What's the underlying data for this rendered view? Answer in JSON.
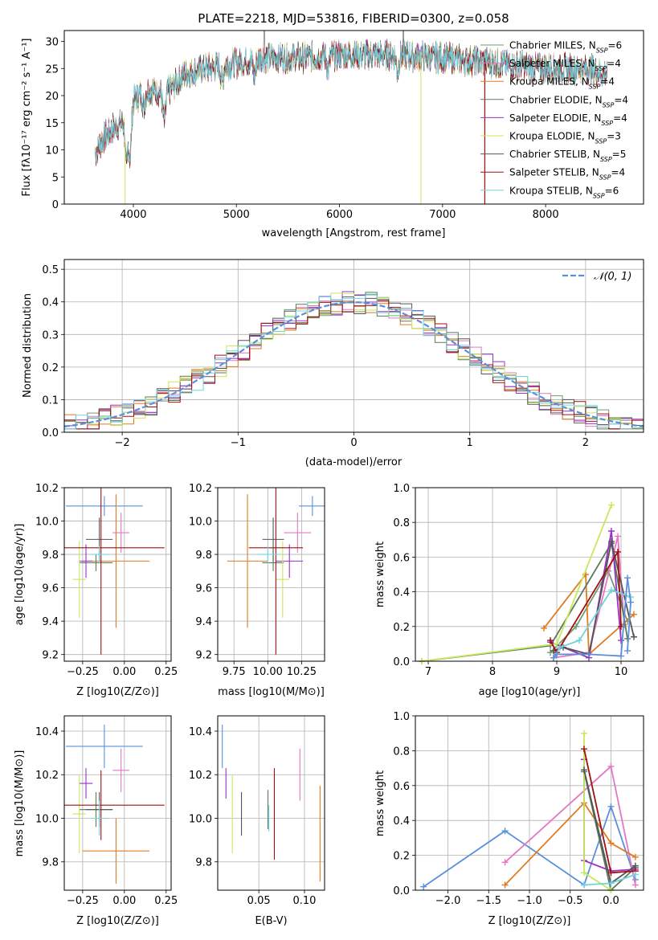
{
  "chart_data": [
    {
      "type": "line",
      "title": "PLATE=2218, MJD=53816, FIBERID=0300, z=0.058",
      "xlabel": "wavelength [Angstrom, rest frame]",
      "ylabel": "Flux [fλ10⁻¹⁷ erg cm⁻² s⁻¹ A⁻¹]",
      "xlim": [
        3330,
        8950
      ],
      "ylim": [
        0,
        32
      ],
      "xticks": [
        4000,
        5000,
        6000,
        7000,
        8000
      ],
      "yticks": [
        0,
        5,
        10,
        15,
        20,
        25,
        30
      ],
      "legend_position": "top-right",
      "continuum_knots": {
        "x": [
          3600,
          3700,
          3800,
          3900,
          4000,
          4100,
          4200,
          4300,
          4400,
          4500,
          4700,
          5000,
          5300,
          5600,
          6000,
          6500,
          7000,
          7500,
          8000,
          8400,
          8600
        ],
        "y": [
          8,
          12,
          14,
          15,
          19,
          21,
          21,
          20,
          22,
          24,
          25,
          26,
          27,
          27,
          27.5,
          27.5,
          27,
          26,
          25,
          25,
          24
        ]
      },
      "series": [
        {
          "name": "Chabrier MILES, N_SSP=6",
          "legend": "Chabrier MILES, N",
          "nssp": "6",
          "color": "#6b9f6b"
        },
        {
          "name": "Salpeter MILES, N_SSP=4",
          "legend": "Salpeter MILES, N",
          "nssp": "4",
          "color": "#e377c2"
        },
        {
          "name": "Kroupa MILES, N_SSP=4",
          "legend": "Kroupa MILES, N",
          "nssp": "4",
          "color": "#e07b20"
        },
        {
          "name": "Chabrier ELODIE, N_SSP=4",
          "legend": "Chabrier ELODIE, N",
          "nssp": "4",
          "color": "#5a7a5a"
        },
        {
          "name": "Salpeter ELODIE, N_SSP=4",
          "legend": "Salpeter ELODIE, N",
          "nssp": "4",
          "color": "#9b30c8"
        },
        {
          "name": "Kroupa ELODIE, N_SSP=3",
          "legend": "Kroupa ELODIE, N",
          "nssp": "3",
          "color": "#c8e85a"
        },
        {
          "name": "Chabrier STELIB, N_SSP=5",
          "legend": "Chabrier STELIB, N",
          "nssp": "5",
          "color": "#555555"
        },
        {
          "name": "Salpeter STELIB, N_SSP=4",
          "legend": "Salpeter STELIB, N",
          "nssp": "4",
          "color": "#a01010"
        },
        {
          "name": "Kroupa STELIB, N_SSP=6",
          "legend": "Kroupa STELIB, N",
          "nssp": "6",
          "color": "#6fd3e0"
        }
      ]
    },
    {
      "type": "histogram",
      "xlabel": "(data-model)/error",
      "ylabel": "Normed distribution",
      "xlim": [
        -2.5,
        2.5
      ],
      "ylim": [
        0,
        0.53
      ],
      "xticks": [
        -2,
        -1,
        0,
        1,
        2
      ],
      "yticks": [
        0.0,
        0.1,
        0.2,
        0.3,
        0.4,
        0.5
      ],
      "legend": "𝒩(0, 1)",
      "bin_width": 0.1,
      "curve_color": "#5b8fd9",
      "series_colors": [
        "#6b9f6b",
        "#e377c2",
        "#e07b20",
        "#5a7a5a",
        "#9b30c8",
        "#c8e85a",
        "#555555",
        "#a01010",
        "#6fd3e0"
      ]
    },
    {
      "type": "scatter",
      "xlabel": "Z [log10(Z/Z⊙)]",
      "ylabel": "age [log10(age/yr)]",
      "xlim": [
        -0.36,
        0.28
      ],
      "ylim": [
        9.16,
        10.2
      ],
      "xticks": [
        -0.25,
        0.0,
        0.25
      ],
      "yticks": [
        9.2,
        9.4,
        9.6,
        9.8,
        10.0,
        10.2
      ],
      "points": [
        {
          "color": "#5b8fd9",
          "x": -0.12,
          "xerr": 0.23,
          "y": 10.09,
          "yerr": 0.06
        },
        {
          "color": "#e377c2",
          "x": -0.02,
          "xerr": 0.05,
          "y": 9.93,
          "yerr": 0.12
        },
        {
          "color": "#e07b20",
          "x": -0.05,
          "xerr": 0.2,
          "y": 9.76,
          "yerr": 0.4
        },
        {
          "color": "#5a7a5a",
          "x": -0.17,
          "xerr": 0.1,
          "y": 9.75,
          "yerr": 0.05
        },
        {
          "color": "#9b30c8",
          "x": -0.23,
          "xerr": 0.04,
          "y": 9.76,
          "yerr": 0.1
        },
        {
          "color": "#c8e85a",
          "x": -0.27,
          "xerr": 0.04,
          "y": 9.65,
          "yerr": 0.23
        },
        {
          "color": "#555555",
          "x": -0.15,
          "xerr": 0.08,
          "y": 9.89,
          "yerr": 0.13
        },
        {
          "color": "#a01010",
          "x": -0.14,
          "xerr": 0.38,
          "y": 9.84,
          "yerr": 0.64
        },
        {
          "color": "#6fd3e0",
          "x": -0.15,
          "xerr": 0.05,
          "y": 9.8,
          "yerr": 0.05
        }
      ]
    },
    {
      "type": "scatter",
      "xlabel": "mass [log10(M/M⊙)]",
      "ylabel": "",
      "xlim": [
        9.63,
        10.42
      ],
      "ylim": [
        9.16,
        10.2
      ],
      "xticks": [
        9.75,
        10.0,
        10.25
      ],
      "yticks": [
        9.2,
        9.4,
        9.6,
        9.8,
        10.0,
        10.2
      ],
      "points": [
        {
          "color": "#5b8fd9",
          "x": 10.33,
          "xerr": 0.1,
          "y": 10.09,
          "yerr": 0.06
        },
        {
          "color": "#e377c2",
          "x": 10.22,
          "xerr": 0.1,
          "y": 9.93,
          "yerr": 0.12
        },
        {
          "color": "#e07b20",
          "x": 9.85,
          "xerr": 0.15,
          "y": 9.76,
          "yerr": 0.4
        },
        {
          "color": "#5a7a5a",
          "x": 10.04,
          "xerr": 0.08,
          "y": 9.75,
          "yerr": 0.05
        },
        {
          "color": "#9b30c8",
          "x": 10.16,
          "xerr": 0.1,
          "y": 9.76,
          "yerr": 0.1
        },
        {
          "color": "#c8e85a",
          "x": 10.11,
          "xerr": 0.05,
          "y": 9.65,
          "yerr": 0.23
        },
        {
          "color": "#555555",
          "x": 10.04,
          "xerr": 0.08,
          "y": 9.89,
          "yerr": 0.13
        },
        {
          "color": "#a01010",
          "x": 10.06,
          "xerr": 0.2,
          "y": 9.84,
          "yerr": 0.64
        },
        {
          "color": "#6fd3e0",
          "x": 10.0,
          "xerr": 0.08,
          "y": 9.8,
          "yerr": 0.05
        }
      ]
    },
    {
      "type": "line",
      "xlabel": "age [log10(age/yr)]",
      "ylabel": "mass weight",
      "xlim": [
        6.8,
        10.35
      ],
      "ylim": [
        0.0,
        1.0
      ],
      "xticks": [
        7,
        8,
        9,
        10
      ],
      "yticks": [
        0.0,
        0.2,
        0.4,
        0.6,
        0.8,
        1.0
      ],
      "series": [
        {
          "color": "#6b9f6b",
          "x": [
            8.9,
            9.3,
            9.8,
            10.1
          ],
          "y": [
            0.05,
            0.2,
            0.52,
            0.23
          ]
        },
        {
          "color": "#e377c2",
          "x": [
            8.95,
            9.5,
            9.95,
            10.05
          ],
          "y": [
            0.02,
            0.05,
            0.72,
            0.21
          ]
        },
        {
          "color": "#e07b20",
          "x": [
            8.8,
            9.45,
            9.5,
            10.2
          ],
          "y": [
            0.19,
            0.5,
            0.04,
            0.27
          ]
        },
        {
          "color": "#5a7a5a",
          "x": [
            6.9,
            8.9,
            9.85,
            10.1
          ],
          "y": [
            0.0,
            0.09,
            0.68,
            0.13
          ]
        },
        {
          "color": "#9b30c8",
          "x": [
            8.9,
            9.5,
            9.85,
            10.0
          ],
          "y": [
            0.11,
            0.02,
            0.75,
            0.12
          ]
        },
        {
          "color": "#c8e85a",
          "x": [
            6.9,
            9.0,
            9.85
          ],
          "y": [
            0.0,
            0.1,
            0.9
          ]
        },
        {
          "color": "#555555",
          "x": [
            8.95,
            9.1,
            9.5,
            9.85,
            10.2
          ],
          "y": [
            0.06,
            0.08,
            0.04,
            0.69,
            0.14
          ]
        },
        {
          "color": "#a01010",
          "x": [
            8.9,
            9.0,
            9.95,
            10.0
          ],
          "y": [
            0.12,
            0.05,
            0.63,
            0.2
          ]
        },
        {
          "color": "#6fd3e0",
          "x": [
            8.95,
            9.05,
            9.35,
            9.85,
            10.15
          ],
          "y": [
            0.02,
            0.08,
            0.12,
            0.41,
            0.37
          ]
        },
        {
          "color": "#5b8fd9",
          "x": [
            8.95,
            9.0,
            9.5,
            10.0,
            10.1,
            10.15,
            10.1
          ],
          "y": [
            0.02,
            0.04,
            0.04,
            0.03,
            0.48,
            0.34,
            0.06
          ]
        }
      ]
    },
    {
      "type": "scatter",
      "xlabel": "Z [log10(Z/Z⊙)]",
      "ylabel": "mass [log10(M/M⊙)]",
      "xlim": [
        -0.36,
        0.28
      ],
      "ylim": [
        9.67,
        10.47
      ],
      "xticks": [
        -0.25,
        0.0,
        0.25
      ],
      "yticks": [
        9.8,
        10.0,
        10.2,
        10.4
      ],
      "points": [
        {
          "color": "#5b8fd9",
          "x": -0.12,
          "xerr": 0.23,
          "y": 10.33,
          "yerr": 0.1
        },
        {
          "color": "#e377c2",
          "x": -0.02,
          "xerr": 0.05,
          "y": 10.22,
          "yerr": 0.1
        },
        {
          "color": "#e07b20",
          "x": -0.05,
          "xerr": 0.2,
          "y": 9.85,
          "yerr": 0.15
        },
        {
          "color": "#5a7a5a",
          "x": -0.17,
          "xerr": 0.1,
          "y": 10.04,
          "yerr": 0.08
        },
        {
          "color": "#9b30c8",
          "x": -0.23,
          "xerr": 0.04,
          "y": 10.16,
          "yerr": 0.07
        },
        {
          "color": "#c8e85a",
          "x": -0.27,
          "xerr": 0.04,
          "y": 10.02,
          "yerr": 0.18
        },
        {
          "color": "#555555",
          "x": -0.15,
          "xerr": 0.08,
          "y": 10.04,
          "yerr": 0.08
        },
        {
          "color": "#a01010",
          "x": -0.14,
          "xerr": 0.38,
          "y": 10.06,
          "yerr": 0.16
        },
        {
          "color": "#6fd3e0",
          "x": -0.15,
          "xerr": 0.05,
          "y": 10.0,
          "yerr": 0.08
        }
      ]
    },
    {
      "type": "scatter",
      "xlabel": "E(B-V)",
      "ylabel": "",
      "xlim": [
        0.005,
        0.122
      ],
      "ylim": [
        9.67,
        10.47
      ],
      "xticks": [
        0.05,
        0.1
      ],
      "yticks": [
        9.8,
        10.0,
        10.2,
        10.4
      ],
      "points": [
        {
          "color": "#5b8fd9",
          "x": 0.01,
          "y": 10.33,
          "yerr": 0.1
        },
        {
          "color": "#9b30c8",
          "x": 0.014,
          "y": 10.16,
          "yerr": 0.07
        },
        {
          "color": "#c8e85a",
          "x": 0.021,
          "y": 10.02,
          "yerr": 0.18
        },
        {
          "color": "#555555",
          "x": 0.031,
          "y": 10.02,
          "yerr": 0.1
        },
        {
          "color": "#5a7a5a",
          "x": 0.06,
          "y": 10.04,
          "yerr": 0.09
        },
        {
          "color": "#6fd3e0",
          "x": 0.061,
          "y": 10.0,
          "yerr": 0.06
        },
        {
          "color": "#a01010",
          "x": 0.067,
          "y": 10.02,
          "yerr": 0.21
        },
        {
          "color": "#e377c2",
          "x": 0.095,
          "y": 10.2,
          "yerr": 0.12
        },
        {
          "color": "#e07b20",
          "x": 0.117,
          "y": 9.93,
          "yerr": 0.22
        }
      ]
    },
    {
      "type": "line",
      "xlabel": "Z [log10(Z/Z⊙)]",
      "ylabel": "mass weight",
      "xlim": [
        -2.4,
        0.4
      ],
      "ylim": [
        0.0,
        1.0
      ],
      "xticks": [
        -2.0,
        -1.5,
        -1.0,
        -0.5,
        0.0
      ],
      "yticks": [
        0.0,
        0.2,
        0.4,
        0.6,
        0.8,
        1.0
      ],
      "series": [
        {
          "color": "#5b8fd9",
          "x": [
            -2.3,
            -1.3,
            -0.33,
            0.0,
            0.3
          ],
          "y": [
            0.02,
            0.34,
            0.03,
            0.48,
            0.06
          ]
        },
        {
          "color": "#e377c2",
          "x": [
            -1.3,
            0.0,
            0.3
          ],
          "y": [
            0.16,
            0.71,
            0.03
          ]
        },
        {
          "color": "#e07b20",
          "x": [
            -1.3,
            -0.33,
            0.0,
            0.3
          ],
          "y": [
            0.03,
            0.5,
            0.27,
            0.19
          ]
        },
        {
          "color": "#5a7a5a",
          "x": [
            -0.33,
            0.0,
            0.3
          ],
          "y": [
            0.68,
            0.0,
            0.13
          ]
        },
        {
          "color": "#9b30c8",
          "x": [
            -0.33,
            -0.33,
            0.0,
            0.3
          ],
          "y": [
            0.75,
            0.17,
            0.11,
            0.12
          ]
        },
        {
          "color": "#c8e85a",
          "x": [
            -0.33,
            -0.33,
            0.0
          ],
          "y": [
            0.9,
            0.1,
            0.0
          ]
        },
        {
          "color": "#555555",
          "x": [
            -0.33,
            0.0,
            0.3
          ],
          "y": [
            0.69,
            0.04,
            0.14
          ]
        },
        {
          "color": "#a01010",
          "x": [
            -0.33,
            0.0,
            0.3
          ],
          "y": [
            0.81,
            0.1,
            0.11
          ]
        },
        {
          "color": "#6fd3e0",
          "x": [
            -0.33,
            0.0,
            0.3
          ],
          "y": [
            0.03,
            0.04,
            0.09
          ]
        }
      ]
    }
  ]
}
